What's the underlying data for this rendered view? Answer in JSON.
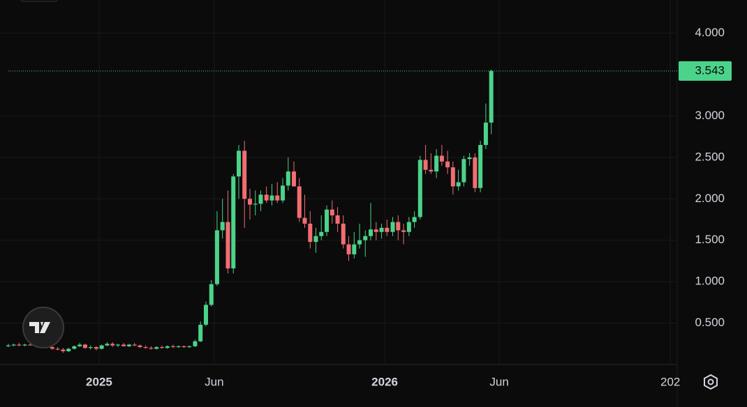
{
  "chart_data": {
    "type": "candlestick",
    "up_color": "#4cd38a",
    "down_color": "#f26d72",
    "grid": true,
    "xlim": [
      2024.653,
      2027.024
    ],
    "xticks": [
      2025,
      {
        "value": 2025.403,
        "label": "Jun"
      },
      2026,
      {
        "value": 2026.401,
        "label": "Jun"
      },
      {
        "value": 2027,
        "label": "202"
      }
    ],
    "ylim": [
      0,
      4.4
    ],
    "yticks": [
      {
        "value": 0.5,
        "label": "0.500"
      },
      {
        "value": 1,
        "label": "1.000"
      },
      {
        "value": 1.5,
        "label": "1.500"
      },
      {
        "value": 2,
        "label": "2.000"
      },
      {
        "value": 2.5,
        "label": "2.500"
      },
      {
        "value": 3,
        "label": "3.000"
      },
      {
        "value": 4,
        "label": "4.000"
      }
    ],
    "x": [
      2024.682,
      2024.701,
      2024.72,
      2024.74,
      2024.759,
      2024.778,
      2024.797,
      2024.817,
      2024.836,
      2024.855,
      2024.874,
      2024.893,
      2024.913,
      2024.932,
      2024.951,
      2024.97,
      2024.99,
      2025.009,
      2025.028,
      2025.047,
      2025.066,
      2025.086,
      2025.105,
      2025.124,
      2025.143,
      2025.163,
      2025.182,
      2025.201,
      2025.22,
      2025.239,
      2025.259,
      2025.278,
      2025.297,
      2025.316,
      2025.336,
      2025.355,
      2025.374,
      2025.393,
      2025.413,
      2025.432,
      2025.451,
      2025.47,
      2025.489,
      2025.509,
      2025.528,
      2025.547,
      2025.566,
      2025.586,
      2025.605,
      2025.624,
      2025.643,
      2025.662,
      2025.682,
      2025.701,
      2025.72,
      2025.739,
      2025.759,
      2025.778,
      2025.797,
      2025.816,
      2025.835,
      2025.855,
      2025.874,
      2025.893,
      2025.912,
      2025.932,
      2025.951,
      2025.97,
      2025.989,
      2026.008,
      2026.028,
      2026.047,
      2026.066,
      2026.085,
      2026.104,
      2026.124,
      2026.143,
      2026.162,
      2026.181,
      2026.2,
      2026.22,
      2026.239,
      2026.258,
      2026.277,
      2026.297,
      2026.316,
      2026.335,
      2026.354,
      2026.373
    ],
    "open": [
      0.22,
      0.23,
      0.24,
      0.23,
      0.24,
      0.23,
      0.22,
      0.23,
      0.21,
      0.19,
      0.18,
      0.16,
      0.19,
      0.22,
      0.24,
      0.2,
      0.21,
      0.19,
      0.23,
      0.25,
      0.23,
      0.24,
      0.22,
      0.24,
      0.23,
      0.21,
      0.2,
      0.19,
      0.21,
      0.2,
      0.22,
      0.21,
      0.22,
      0.21,
      0.22,
      0.28,
      0.48,
      0.72,
      0.97,
      1.62,
      1.72,
      1.16,
      2.27,
      2.58,
      2.0,
      1.93,
      1.94,
      2.05,
      1.98,
      2.04,
      1.98,
      2.16,
      2.33,
      2.15,
      1.77,
      1.7,
      1.48,
      1.55,
      1.6,
      1.87,
      1.8,
      1.7,
      1.45,
      1.33,
      1.45,
      1.5,
      1.55,
      1.63,
      1.6,
      1.65,
      1.6,
      1.72,
      1.62,
      1.6,
      1.72,
      1.78,
      2.47,
      2.35,
      2.33,
      2.52,
      2.45,
      2.38,
      2.15,
      2.2,
      2.48,
      2.5,
      2.13,
      2.65,
      2.92
    ],
    "high": [
      0.25,
      0.25,
      0.26,
      0.25,
      0.26,
      0.25,
      0.24,
      0.25,
      0.23,
      0.21,
      0.2,
      0.2,
      0.23,
      0.26,
      0.25,
      0.23,
      0.22,
      0.24,
      0.27,
      0.27,
      0.25,
      0.26,
      0.25,
      0.26,
      0.24,
      0.23,
      0.22,
      0.22,
      0.23,
      0.23,
      0.24,
      0.23,
      0.23,
      0.23,
      0.3,
      0.52,
      0.76,
      1.02,
      1.85,
      2.0,
      2.1,
      2.3,
      2.65,
      2.7,
      2.12,
      2.1,
      2.1,
      2.15,
      2.18,
      2.2,
      2.25,
      2.5,
      2.45,
      2.25,
      2.05,
      1.85,
      1.65,
      1.8,
      1.92,
      1.98,
      1.9,
      1.8,
      1.55,
      1.6,
      1.7,
      1.62,
      1.95,
      1.72,
      1.7,
      1.75,
      1.78,
      1.8,
      1.7,
      1.78,
      1.85,
      2.52,
      2.65,
      2.55,
      2.6,
      2.65,
      2.58,
      2.45,
      2.35,
      2.52,
      2.55,
      2.55,
      2.7,
      3.15,
      3.56
    ],
    "low": [
      0.21,
      0.22,
      0.22,
      0.22,
      0.23,
      0.21,
      0.21,
      0.21,
      0.18,
      0.17,
      0.14,
      0.15,
      0.18,
      0.21,
      0.19,
      0.18,
      0.17,
      0.18,
      0.22,
      0.21,
      0.21,
      0.22,
      0.21,
      0.22,
      0.2,
      0.19,
      0.18,
      0.18,
      0.19,
      0.19,
      0.2,
      0.2,
      0.2,
      0.2,
      0.21,
      0.27,
      0.46,
      0.7,
      0.95,
      1.52,
      1.1,
      1.1,
      2.0,
      1.65,
      1.75,
      1.8,
      1.85,
      1.95,
      1.92,
      1.95,
      1.95,
      2.1,
      2.15,
      1.72,
      1.65,
      1.4,
      1.35,
      1.5,
      1.55,
      1.7,
      1.6,
      1.4,
      1.25,
      1.28,
      1.4,
      1.3,
      1.5,
      1.5,
      1.52,
      1.55,
      1.55,
      1.5,
      1.45,
      1.55,
      1.65,
      1.75,
      2.3,
      2.3,
      2.25,
      2.4,
      2.3,
      2.05,
      2.1,
      2.15,
      2.4,
      2.08,
      2.08,
      2.6,
      2.78
    ],
    "close": [
      0.23,
      0.24,
      0.23,
      0.24,
      0.23,
      0.22,
      0.23,
      0.21,
      0.19,
      0.18,
      0.16,
      0.19,
      0.22,
      0.24,
      0.2,
      0.21,
      0.19,
      0.23,
      0.25,
      0.23,
      0.24,
      0.22,
      0.24,
      0.23,
      0.21,
      0.2,
      0.19,
      0.21,
      0.2,
      0.22,
      0.21,
      0.22,
      0.21,
      0.22,
      0.28,
      0.48,
      0.72,
      0.97,
      1.62,
      1.72,
      1.16,
      2.27,
      2.58,
      2.0,
      1.93,
      1.94,
      2.05,
      1.98,
      2.04,
      1.98,
      2.16,
      2.33,
      2.15,
      1.77,
      1.7,
      1.48,
      1.55,
      1.6,
      1.87,
      1.8,
      1.7,
      1.45,
      1.33,
      1.45,
      1.5,
      1.55,
      1.63,
      1.6,
      1.65,
      1.6,
      1.72,
      1.62,
      1.6,
      1.72,
      1.78,
      2.47,
      2.35,
      2.33,
      2.52,
      2.45,
      2.38,
      2.15,
      2.2,
      2.48,
      2.5,
      2.13,
      2.65,
      2.92,
      3.543
    ]
  }
}
